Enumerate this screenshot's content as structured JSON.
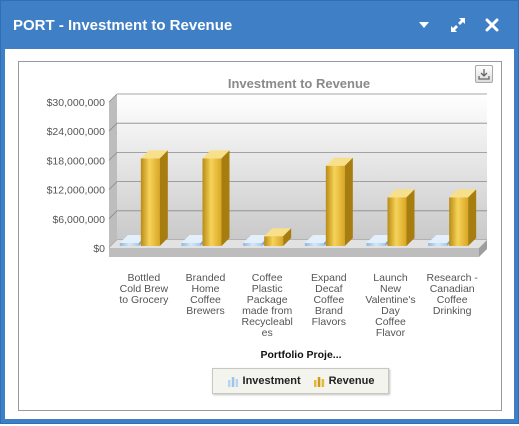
{
  "window": {
    "title": "PORT - Investment to Revenue",
    "icons": [
      "chevron-down-icon",
      "expand-icon",
      "close-icon"
    ]
  },
  "toolbar": {
    "download_icon": "download-icon"
  },
  "chart_data": {
    "type": "bar",
    "title": "Investment to Revenue",
    "xlabel": "Portfolio Proje...",
    "ylabel": "",
    "ylim": [
      0,
      30000000
    ],
    "ytick_labels": [
      "$0",
      "$6,000,000",
      "$12,000,000",
      "$18,000,000",
      "$24,000,000",
      "$30,000,000"
    ],
    "yticks": [
      0,
      6000000,
      12000000,
      18000000,
      24000000,
      30000000
    ],
    "categories": [
      [
        "Bottled",
        "Cold Brew",
        "to Grocery"
      ],
      [
        "Branded",
        "Home",
        "Coffee",
        "Brewers"
      ],
      [
        "Coffee",
        "Plastic",
        "Package",
        "made from",
        "Recycleabl",
        "es"
      ],
      [
        "Expand",
        "Decaf",
        "Coffee",
        "Brand",
        "Flavors"
      ],
      [
        "Launch",
        "New",
        "Valentine's",
        "Day",
        "Coffee",
        "Flavor"
      ],
      [
        "Research -",
        "Canadian",
        "Coffee",
        "Drinking"
      ]
    ],
    "series": [
      {
        "name": "Investment",
        "values": [
          0,
          0,
          0,
          0,
          0,
          0
        ],
        "color": "#b8d4ee"
      },
      {
        "name": "Revenue",
        "values": [
          18000000,
          18000000,
          2000000,
          16500000,
          10000000,
          10000000
        ],
        "color": "#e6b834"
      }
    ],
    "grid": true,
    "legend": "bottom"
  }
}
